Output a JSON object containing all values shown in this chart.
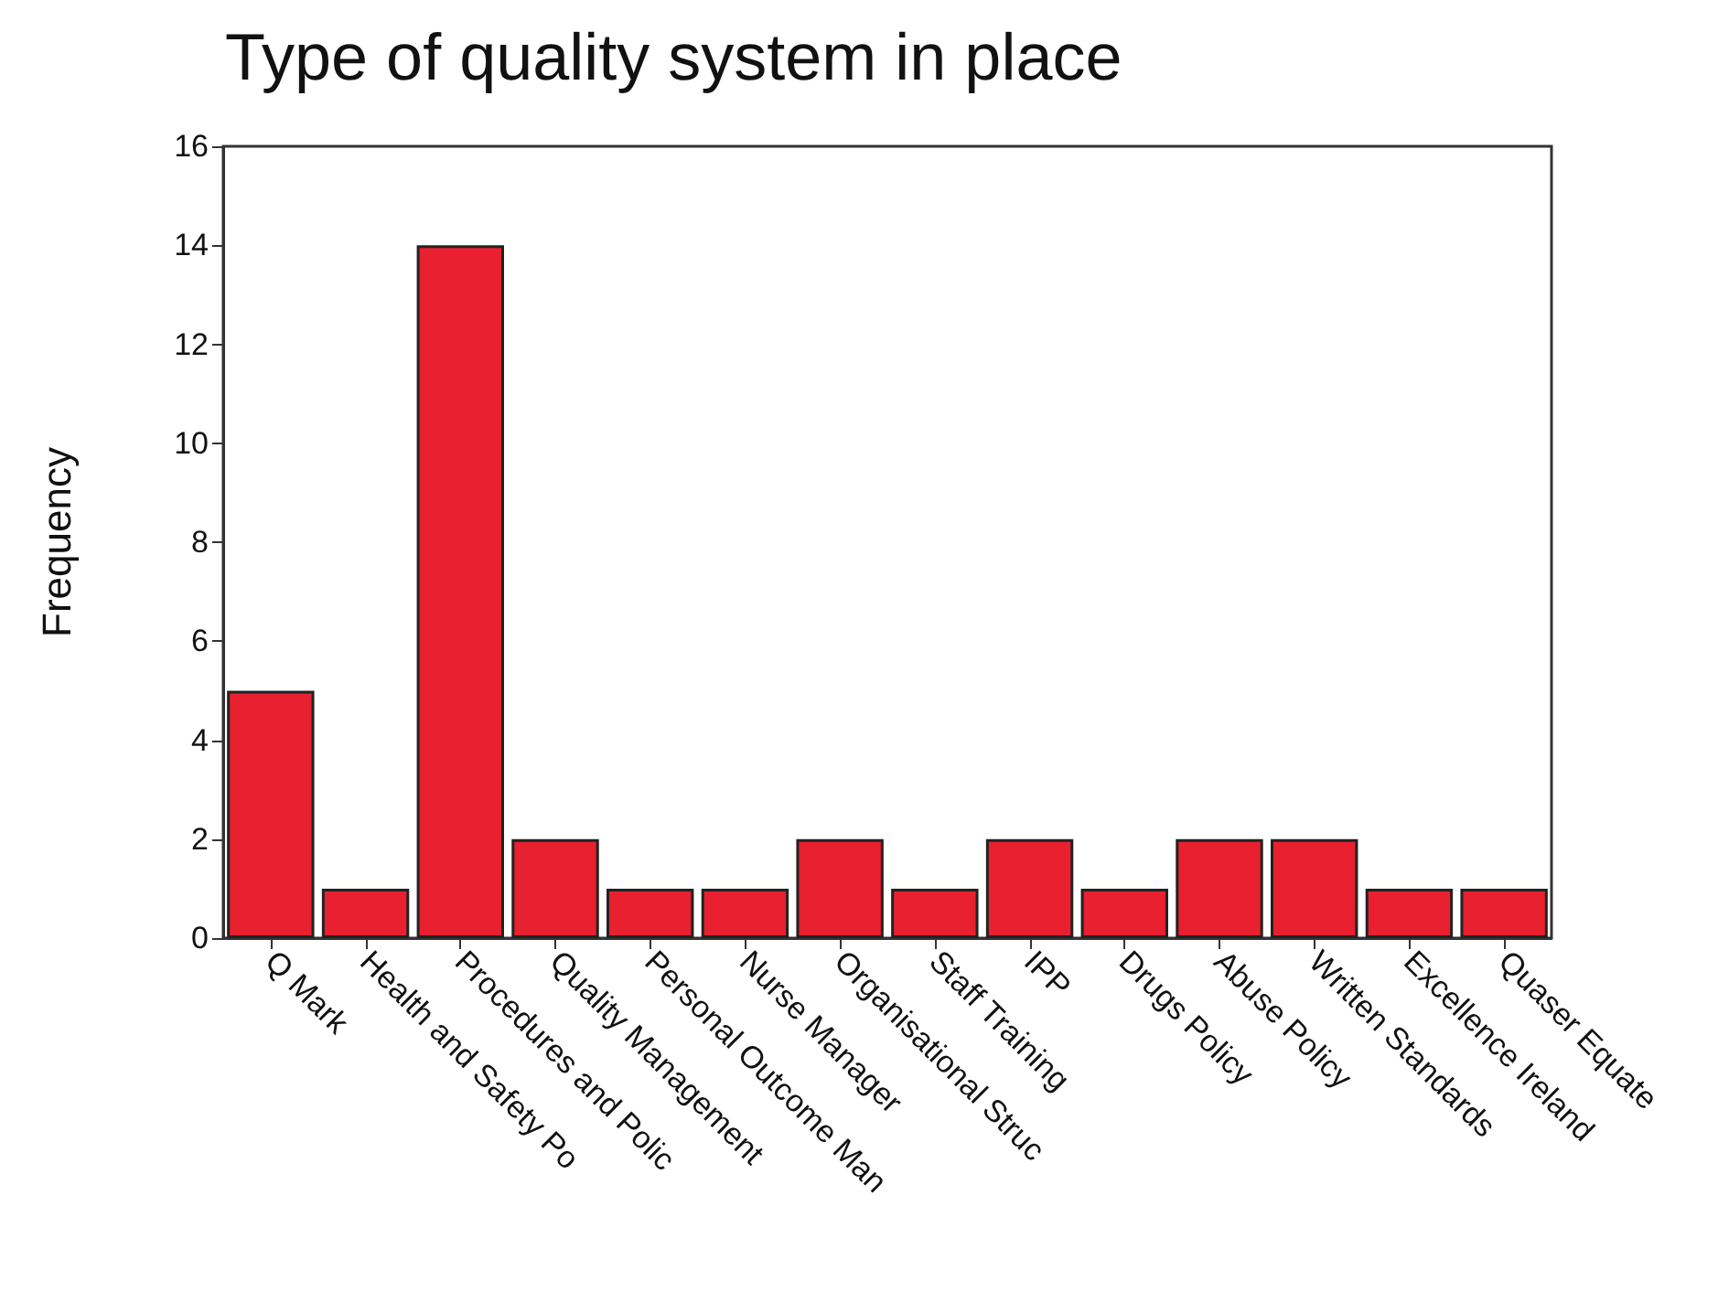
{
  "chart_data": {
    "type": "bar",
    "title": "Type of quality system in place",
    "ylabel": "Frequency",
    "categories": [
      "Q Mark",
      "Health and Safety Po",
      "Procedures and Polic",
      "Quality Management",
      "Personal Outcome Man",
      "Nurse Manager",
      "Organisational Struc",
      "Staff Training",
      "IPP",
      "Drugs Policy",
      "Abuse Policy",
      "Written Standards",
      "Excellence Ireland",
      "Quaser Equate"
    ],
    "values": [
      5,
      1,
      14,
      2,
      1,
      1,
      2,
      1,
      2,
      1,
      2,
      2,
      1,
      1
    ],
    "color": "#e8202f",
    "ylim": [
      0,
      16
    ],
    "yticks": [
      0,
      2,
      4,
      6,
      8,
      10,
      12,
      14,
      16
    ],
    "grid": false
  }
}
